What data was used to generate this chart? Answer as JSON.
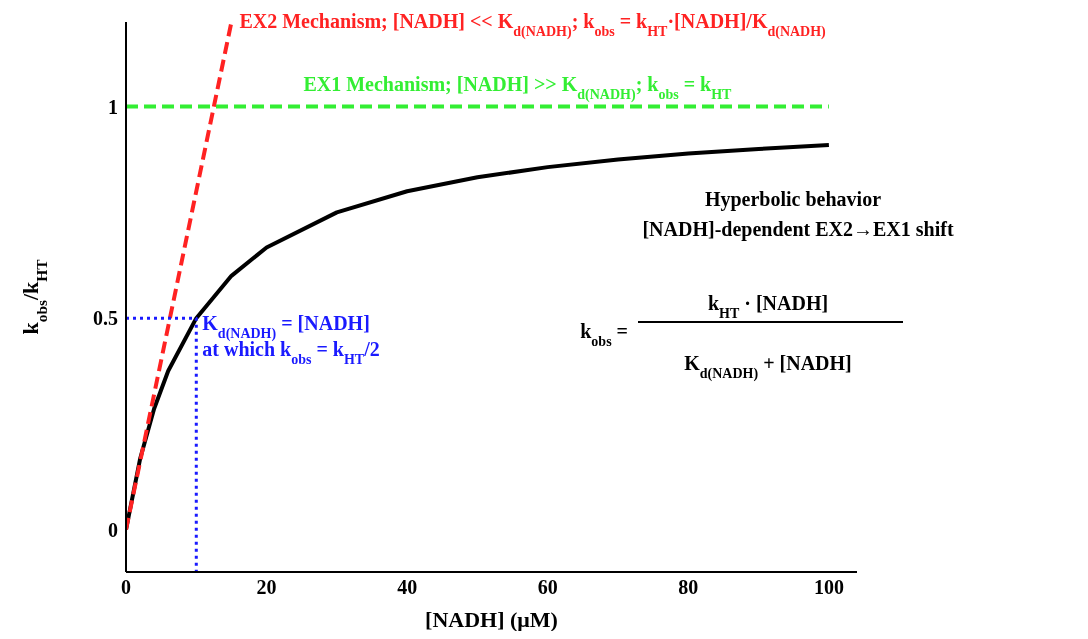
{
  "chart_data": {
    "type": "line",
    "xlabel": "[NADH] (μM)",
    "ylabel": "k$_{obs}$/k$_{HT}$",
    "xlim": [
      0,
      104
    ],
    "ylim": [
      -0.1,
      1.2
    ],
    "xticks": [
      0,
      20,
      40,
      60,
      80,
      100
    ],
    "yticks": [
      0,
      0.5,
      1
    ],
    "marker": "none",
    "series": [
      {
        "color": "#000000",
        "line_style": "solid",
        "x": [
          0,
          2,
          4,
          6,
          10,
          15,
          20,
          30,
          40,
          50,
          60,
          70,
          80,
          90,
          100
        ],
        "values": [
          0,
          0.167,
          0.286,
          0.375,
          0.5,
          0.6,
          0.667,
          0.75,
          0.8,
          0.833,
          0.857,
          0.875,
          0.889,
          0.9,
          0.909
        ]
      },
      {
        "name": "EX2 Mechanism; [NADH] << K$_{d(NADH)}$; k$_{obs}$ = k$_{HT}$·[NADH]/K$_{d(NADH)}$",
        "color": "#ff2222",
        "line_style": "dashed",
        "x": [
          0,
          15
        ],
        "values": [
          0,
          1.2
        ]
      },
      {
        "name": "EX1 Mechanism; [NADH] >> K$_{d(NADH)}$; k$_{obs}$ = k$_{HT}$",
        "color": "#33ee33",
        "line_style": "dashed",
        "x": [
          0,
          100
        ],
        "values": [
          1,
          1
        ]
      },
      {
        "name": "K$_{d(NADH)}$ = [NADH]\nat which k$_{obs}$ = k$_{HT}$/2",
        "color": "#1a1aff",
        "line_style": "dotted",
        "x": [
          0,
          10,
          10
        ],
        "values": [
          0.5,
          0.5,
          -0.1
        ]
      }
    ],
    "annotations": [
      "Hyperbolic behavior",
      "[NADH]-dependent EX2→EX1 shift",
      "k$_{obs}$ =",
      "k$_{HT}$ · [NADH]",
      "K$_{d(NADH)}$ + [NADH]"
    ]
  }
}
